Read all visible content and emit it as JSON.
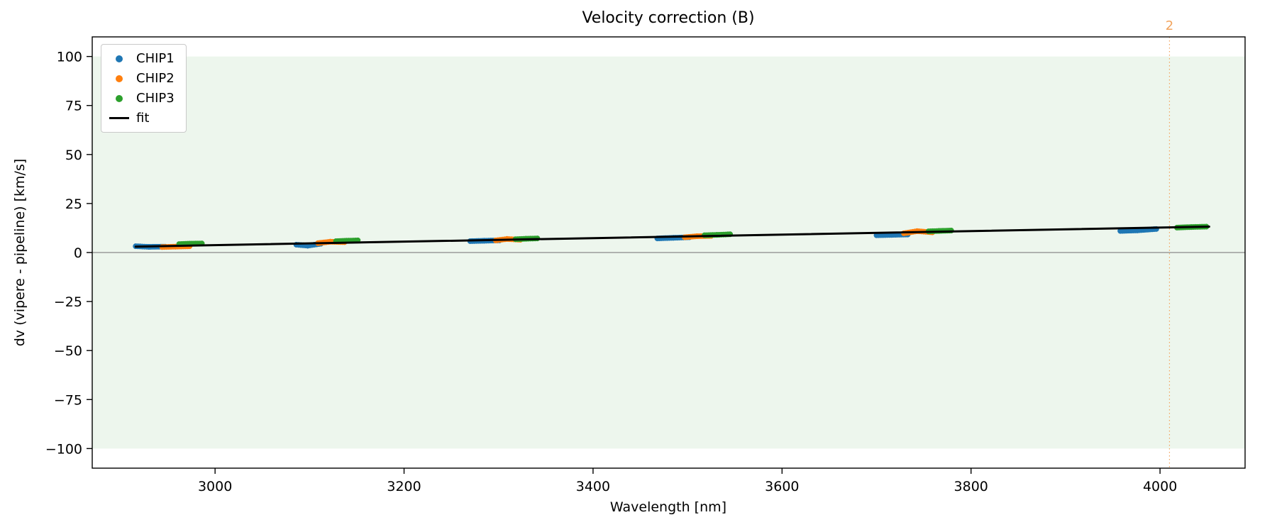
{
  "chart_data": {
    "type": "scatter",
    "title": "Velocity correction (B)",
    "xlabel": "Wavelength [nm]",
    "ylabel": "dv (vipere - pipeline) [km/s]",
    "xlim": [
      2870,
      4090
    ],
    "ylim": [
      -110,
      110
    ],
    "xticks": [
      3000,
      3200,
      3400,
      3600,
      3800,
      4000
    ],
    "yticks": [
      -100,
      -75,
      -50,
      -25,
      0,
      25,
      50,
      75,
      100
    ],
    "grid": false,
    "legend_position": "upper left",
    "background_band": {
      "ymin": -100,
      "ymax": 100,
      "color": "#edf6ed"
    },
    "hline": {
      "y": 0,
      "color": "#8a8a8a"
    },
    "vline": {
      "x": 4010,
      "label": "2",
      "color": "#f2a35c",
      "style": "dotted"
    },
    "marker_radius": 4,
    "series": [
      {
        "name": "CHIP1",
        "color": "#1f77b4",
        "clusters": [
          [
            [
              2916,
              3.2
            ],
            [
              2930,
              2.9
            ],
            [
              2947,
              3.0
            ]
          ],
          [
            [
              3086,
              4.0
            ],
            [
              3098,
              3.5
            ],
            [
              3112,
              4.5
            ]
          ],
          [
            [
              3270,
              5.8
            ],
            [
              3285,
              6.0
            ],
            [
              3301,
              6.2
            ]
          ],
          [
            [
              3468,
              7.2
            ],
            [
              3485,
              7.5
            ],
            [
              3502,
              7.8
            ]
          ],
          [
            [
              3700,
              8.8
            ],
            [
              3716,
              9.0
            ],
            [
              3733,
              9.2
            ]
          ],
          [
            [
              3958,
              11.0
            ],
            [
              3976,
              11.3
            ],
            [
              3996,
              12.0
            ]
          ]
        ]
      },
      {
        "name": "CHIP2",
        "color": "#ff7f0e",
        "clusters": [
          [
            [
              2944,
              2.8
            ],
            [
              2958,
              3.0
            ],
            [
              2973,
              3.2
            ]
          ],
          [
            [
              3109,
              4.8
            ],
            [
              3122,
              5.5
            ],
            [
              3137,
              5.3
            ]
          ],
          [
            [
              3297,
              6.2
            ],
            [
              3309,
              6.9
            ],
            [
              3323,
              6.5
            ]
          ],
          [
            [
              3497,
              7.8
            ],
            [
              3510,
              8.3
            ],
            [
              3525,
              8.5
            ]
          ],
          [
            [
              3729,
              9.8
            ],
            [
              3743,
              10.9
            ],
            [
              3759,
              10.3
            ]
          ]
        ]
      },
      {
        "name": "CHIP3",
        "color": "#2ca02c",
        "clusters": [
          [
            [
              2962,
              4.3
            ],
            [
              2973,
              4.5
            ],
            [
              2986,
              4.6
            ]
          ],
          [
            [
              3128,
              5.8
            ],
            [
              3139,
              6.0
            ],
            [
              3151,
              6.2
            ]
          ],
          [
            [
              3318,
              6.8
            ],
            [
              3329,
              7.0
            ],
            [
              3341,
              7.2
            ]
          ],
          [
            [
              3518,
              8.8
            ],
            [
              3531,
              9.0
            ],
            [
              3545,
              9.3
            ]
          ],
          [
            [
              3755,
              10.8
            ],
            [
              3766,
              11.0
            ],
            [
              3779,
              11.2
            ]
          ],
          [
            [
              4018,
              12.7
            ],
            [
              4033,
              13.0
            ],
            [
              4049,
              13.2
            ]
          ]
        ]
      }
    ],
    "fit": {
      "name": "fit",
      "color": "#000000",
      "x": [
        2916,
        4052
      ],
      "y": [
        3.0,
        13.2
      ]
    },
    "legend": [
      {
        "label": "CHIP1",
        "marker": "dot",
        "color": "#1f77b4"
      },
      {
        "label": "CHIP2",
        "marker": "dot",
        "color": "#ff7f0e"
      },
      {
        "label": "CHIP3",
        "marker": "dot",
        "color": "#2ca02c"
      },
      {
        "label": "fit",
        "marker": "line",
        "color": "#000000"
      }
    ]
  }
}
